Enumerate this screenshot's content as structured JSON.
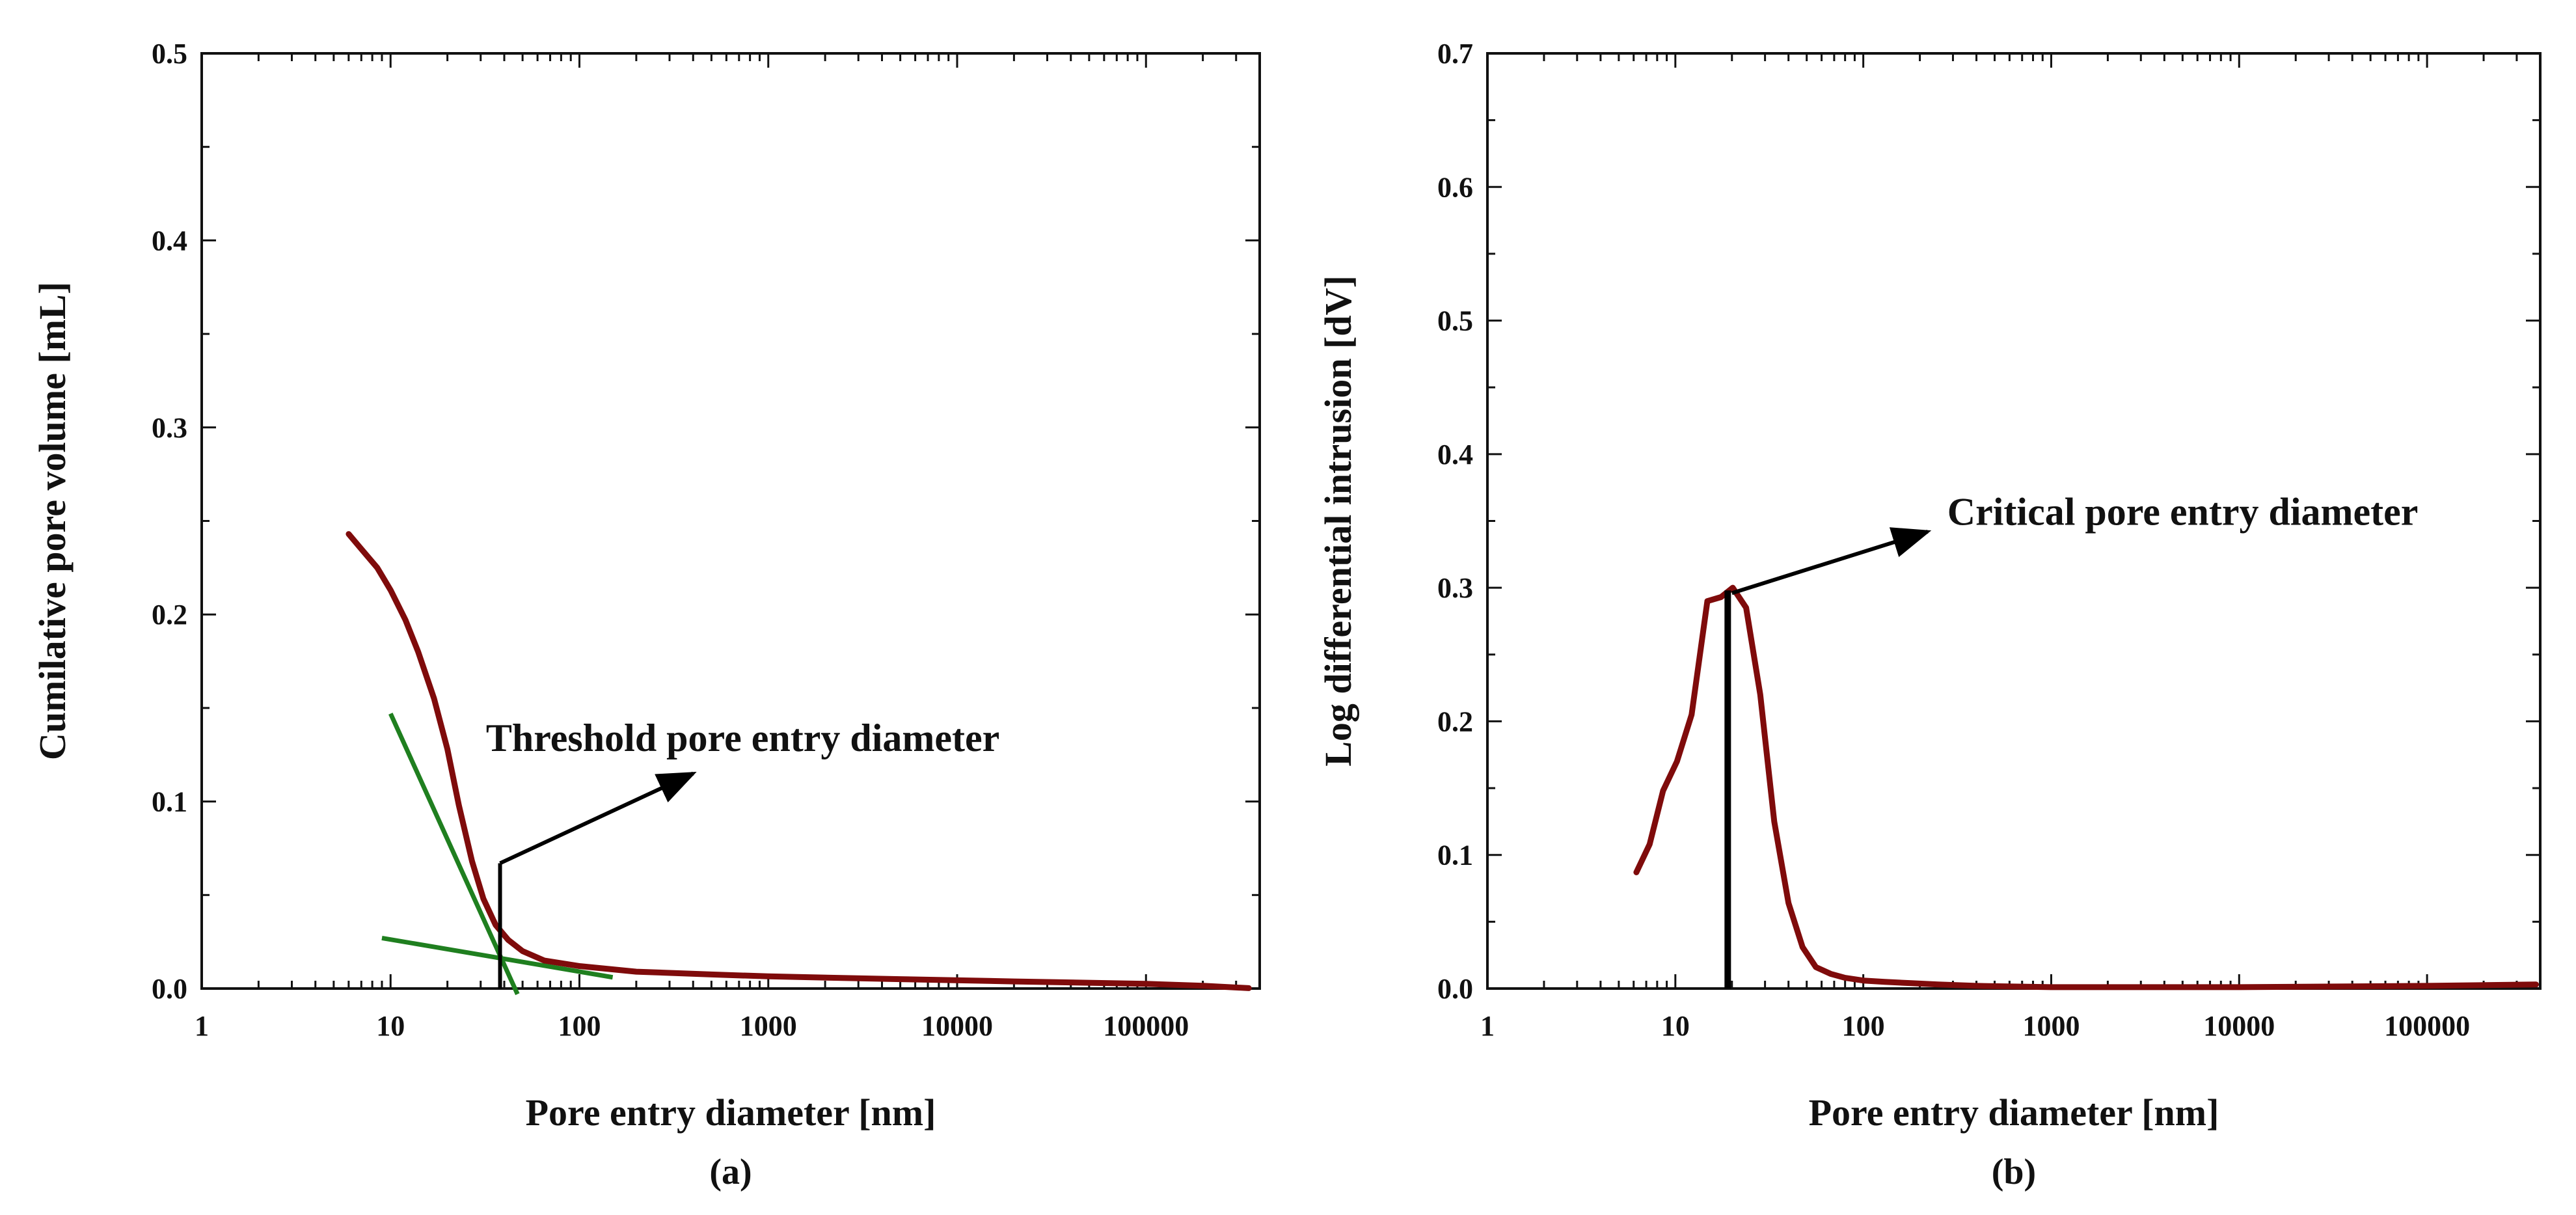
{
  "colors": {
    "curve": "#7f0b0b",
    "tangent": "#1f7f1f",
    "axis": "#111111",
    "annotation": "#000000"
  },
  "chart_data": [
    {
      "type": "line",
      "panel_label": "(a)",
      "xscale": "log",
      "xlim": [
        1,
        400000
      ],
      "ylim": [
        0,
        0.5
      ],
      "xlabel": "Pore entry diameter [nm]",
      "ylabel": "Cumilative pore volume [mL]",
      "xticks": [
        1,
        10,
        100,
        1000,
        10000,
        100000
      ],
      "xtick_labels": [
        "1",
        "10",
        "100",
        "1000",
        "10000",
        "100000"
      ],
      "yticks": [
        0,
        0.1,
        0.2,
        0.3,
        0.4,
        0.5
      ],
      "ytick_labels": [
        "0.0",
        "0.1",
        "0.2",
        "0.3",
        "0.4",
        "0.5"
      ],
      "series": [
        {
          "name": "Cumulative pore volume",
          "x": [
            6,
            7,
            8.5,
            10,
            12,
            14,
            17,
            20,
            23,
            27,
            31,
            36,
            42,
            50,
            65,
            100,
            200,
            500,
            1000,
            5000,
            20000,
            100000,
            200000,
            350000
          ],
          "y": [
            0.243,
            0.235,
            0.225,
            0.213,
            0.197,
            0.18,
            0.155,
            0.128,
            0.098,
            0.068,
            0.048,
            0.034,
            0.026,
            0.02,
            0.015,
            0.012,
            0.009,
            0.0075,
            0.0065,
            0.005,
            0.0038,
            0.0025,
            0.0015,
            0.0002
          ]
        }
      ],
      "tangents": [
        {
          "name": "steep tangent",
          "x": [
            10,
            47
          ],
          "y": [
            0.147,
            -0.003
          ]
        },
        {
          "name": "plateau tangent",
          "x": [
            9,
            150
          ],
          "y": [
            0.027,
            0.006
          ]
        }
      ],
      "annotation": {
        "text": "Threshold pore entry diameter",
        "marker_x": 38,
        "marker_y_range": [
          0,
          0.067
        ],
        "arrow_to": [
          400,
          0.115
        ]
      }
    },
    {
      "type": "line",
      "panel_label": "(b)",
      "xscale": "log",
      "xlim": [
        1,
        400000
      ],
      "ylim": [
        0,
        0.7
      ],
      "xlabel": "Pore entry diameter [nm]",
      "ylabel": "Log differential intrusion [dV]",
      "xticks": [
        1,
        10,
        100,
        1000,
        10000,
        100000
      ],
      "xtick_labels": [
        "1",
        "10",
        "100",
        "1000",
        "10000",
        "100000"
      ],
      "yticks": [
        0,
        0.1,
        0.2,
        0.3,
        0.4,
        0.5,
        0.6,
        0.7
      ],
      "ytick_labels": [
        "0.0",
        "0.1",
        "0.2",
        "0.3",
        "0.4",
        "0.5",
        "0.6",
        "0.7"
      ],
      "series": [
        {
          "name": "Log differential intrusion",
          "x": [
            6.2,
            7.3,
            8.6,
            10.2,
            12.2,
            14.8,
            17.5,
            20.2,
            23.8,
            28.3,
            33.6,
            40,
            47.5,
            56,
            67,
            80,
            100,
            130,
            180,
            250,
            400,
            1000,
            10000,
            100000,
            380000
          ],
          "y": [
            0.087,
            0.108,
            0.148,
            0.17,
            0.205,
            0.29,
            0.293,
            0.3,
            0.285,
            0.22,
            0.125,
            0.064,
            0.031,
            0.016,
            0.011,
            0.008,
            0.006,
            0.005,
            0.004,
            0.003,
            0.002,
            0.001,
            0.001,
            0.002,
            0.003
          ]
        }
      ],
      "annotation": {
        "text": "Critical pore entry diameter",
        "marker_x": 19,
        "marker_y_range": [
          0,
          0.298
        ],
        "arrow_from": [
          20,
          0.296
        ],
        "arrow_to": [
          220,
          0.342
        ]
      }
    }
  ]
}
